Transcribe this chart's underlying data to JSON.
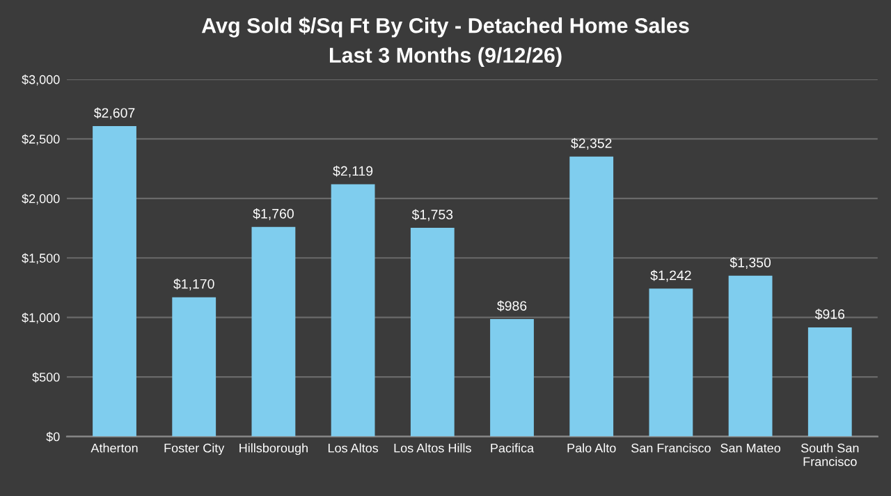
{
  "chart_data": {
    "type": "bar",
    "title": "Avg Sold $/Sq Ft By City - Detached Home Sales",
    "subtitle": "Last 3 Months (9/12/26)",
    "categories": [
      "Atherton",
      "Foster City",
      "Hillsborough",
      "Los Altos",
      "Los Altos Hills",
      "Pacifica",
      "Palo Alto",
      "San Francisco",
      "San Mateo",
      "South San Francisco"
    ],
    "values": [
      2607,
      1170,
      1760,
      2119,
      1753,
      986,
      2352,
      1242,
      1350,
      916
    ],
    "value_labels": [
      "$2,607",
      "$1,170",
      "$1,760",
      "$2,119",
      "$1,753",
      "$986",
      "$2,352",
      "$1,242",
      "$1,350",
      "$916"
    ],
    "color": "#7fcdee",
    "ylim": [
      0,
      3000
    ],
    "yticks": [
      {
        "value": 0,
        "label": "$0"
      },
      {
        "value": 500,
        "label": "$500"
      },
      {
        "value": 1000,
        "label": "$1,000"
      },
      {
        "value": 1500,
        "label": "$1,500"
      },
      {
        "value": 2000,
        "label": "$2,000"
      },
      {
        "value": 2500,
        "label": "$2,500"
      },
      {
        "value": 3000,
        "label": "$3,000"
      }
    ],
    "grid": "y"
  }
}
